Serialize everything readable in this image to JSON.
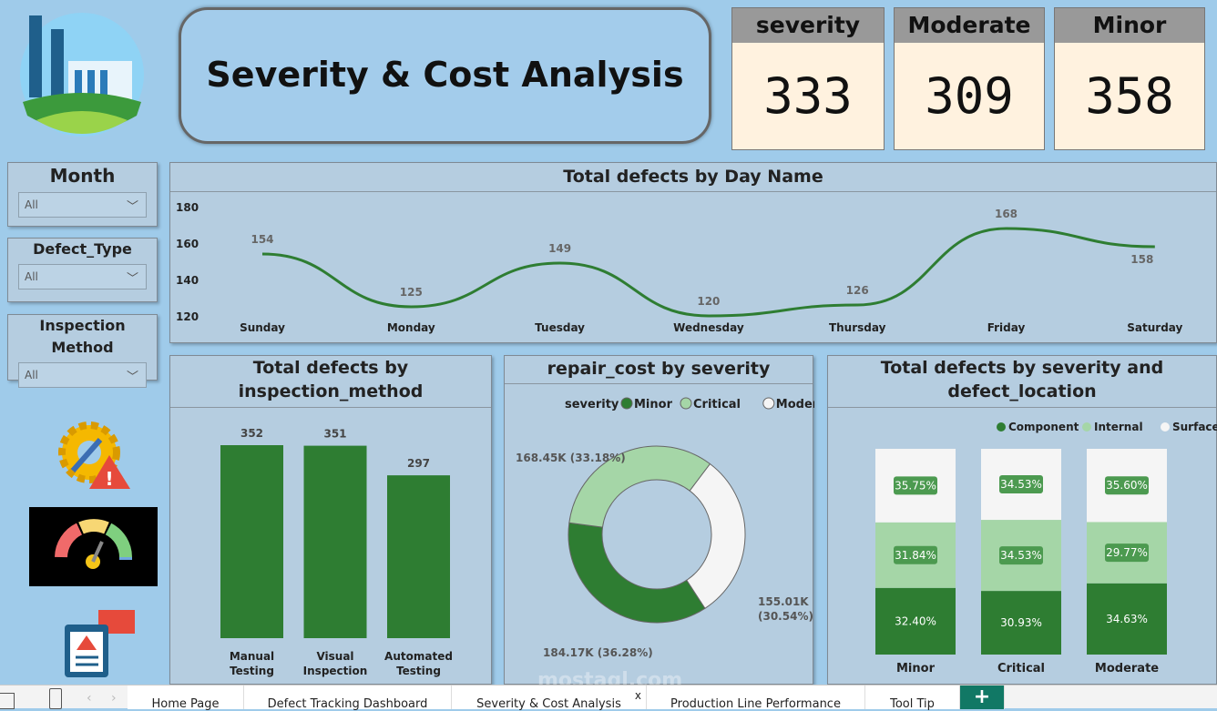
{
  "title": "Severity & Cost Analysis",
  "kpis": [
    {
      "label": "severity",
      "value": "333"
    },
    {
      "label": "Moderate",
      "value": "309"
    },
    {
      "label": "Minor",
      "value": "358"
    }
  ],
  "slicers": [
    {
      "label": "Month",
      "value": "All"
    },
    {
      "label": "Defect_Type",
      "value": "All"
    },
    {
      "label": "Inspection Method",
      "value": "All"
    }
  ],
  "colors": {
    "dark_green": "#2e7d32",
    "light_green": "#a5d6a7",
    "white": "#f5f5f5",
    "background": "#9fcbea",
    "panel": "#b5cde0"
  },
  "chart_data": [
    {
      "type": "line",
      "title": "Total defects by Day Name",
      "categories": [
        "Sunday",
        "Monday",
        "Tuesday",
        "Wednesday",
        "Thursday",
        "Friday",
        "Saturday"
      ],
      "values": [
        154,
        125,
        149,
        120,
        126,
        168,
        158
      ],
      "yticks": [
        "120",
        "140",
        "160",
        "180"
      ],
      "ylim": [
        120,
        180
      ],
      "color": "#2e7d32"
    },
    {
      "type": "bar",
      "title": "Total defects by inspection_method",
      "categories": [
        "Manual Testing",
        "Visual Inspection",
        "Automated Testing"
      ],
      "values": [
        352,
        351,
        297
      ],
      "color": "#2e7d32"
    },
    {
      "type": "pie",
      "title": "repair_cost by severity",
      "legend_title": "severity",
      "labels": [
        "Minor",
        "Critical",
        "Moderate"
      ],
      "values": [
        184.17,
        168.45,
        155.01
      ],
      "data_labels": [
        "184.17K (36.28%)",
        "168.45K (33.18%)",
        "155.01K (30.54%)"
      ],
      "percent": [
        36.28,
        33.18,
        30.54
      ],
      "colors": [
        "#2e7d32",
        "#a5d6a7",
        "#f5f5f5"
      ],
      "donut": true
    },
    {
      "type": "bar",
      "stacked": "100%",
      "title": "Total defects by severity and defect_location",
      "categories": [
        "Minor",
        "Critical",
        "Moderate"
      ],
      "series": [
        {
          "name": "Component",
          "values": [
            32.4,
            30.93,
            34.63
          ],
          "color": "#2e7d32"
        },
        {
          "name": "Internal",
          "values": [
            31.84,
            34.53,
            29.77
          ],
          "color": "#a5d6a7"
        },
        {
          "name": "Surface",
          "values": [
            35.75,
            34.53,
            35.6
          ],
          "color": "#f5f5f5"
        }
      ],
      "legend": "top-right"
    }
  ],
  "tabs": [
    {
      "label": "Home Page"
    },
    {
      "label": "Defect Tracking Dashboard"
    },
    {
      "label": "Severity & Cost Analysis",
      "active": true,
      "close": "x"
    },
    {
      "label": "Production Line Performance"
    },
    {
      "label": "Tool Tip"
    }
  ],
  "add_tab": "+"
}
